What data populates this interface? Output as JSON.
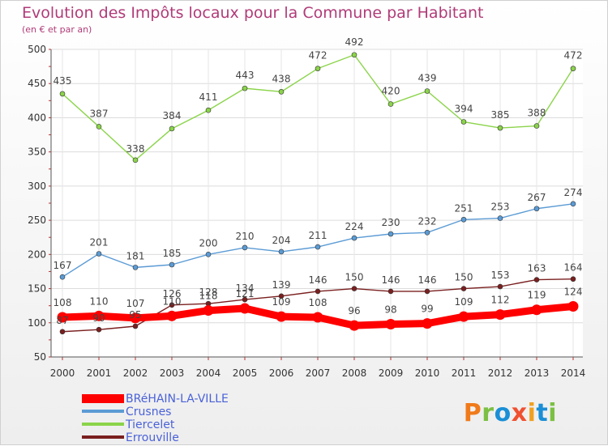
{
  "header": {
    "title": "Evolution des Impôts locaux pour la Commune par Habitant",
    "subtitle": "(en € et par an)"
  },
  "logo": {
    "p": "P",
    "r": "r",
    "o": "o",
    "x": "x",
    "i": "i",
    "t": "t",
    "i2": "i"
  },
  "chart_data": {
    "type": "line",
    "x": [
      "2000",
      "2001",
      "2002",
      "2003",
      "2004",
      "2005",
      "2006",
      "2007",
      "2008",
      "2009",
      "2010",
      "2011",
      "2012",
      "2013",
      "2014"
    ],
    "ylim": [
      50,
      500
    ],
    "yticks": [
      50,
      100,
      150,
      200,
      250,
      300,
      350,
      400,
      450,
      500
    ],
    "grid": true,
    "legend_position": "bottom-left",
    "series": [
      {
        "name": "BRéHAIN-LA-VILLE",
        "color": "#ff0000",
        "marker": "#ff0000",
        "bold": true,
        "values": [
          108,
          110,
          107,
          110,
          118,
          121,
          109,
          108,
          96,
          98,
          99,
          109,
          112,
          119,
          124
        ]
      },
      {
        "name": "Crusnes",
        "color": "#5b9bd5",
        "marker": "#5b9bd5",
        "bold": false,
        "values": [
          167,
          201,
          181,
          185,
          200,
          210,
          204,
          211,
          224,
          230,
          232,
          251,
          253,
          267,
          274
        ]
      },
      {
        "name": "Tiercelet",
        "color": "#8bd44a",
        "marker": "#8bd44a",
        "bold": false,
        "values": [
          435,
          387,
          338,
          384,
          411,
          443,
          438,
          472,
          492,
          420,
          439,
          394,
          385,
          388,
          472
        ]
      },
      {
        "name": "Errouville",
        "color": "#7a1f1f",
        "marker": "#7a1f1f",
        "bold": false,
        "values": [
          87,
          90,
          95,
          126,
          128,
          134,
          139,
          146,
          150,
          146,
          146,
          150,
          153,
          163,
          164
        ]
      }
    ]
  }
}
